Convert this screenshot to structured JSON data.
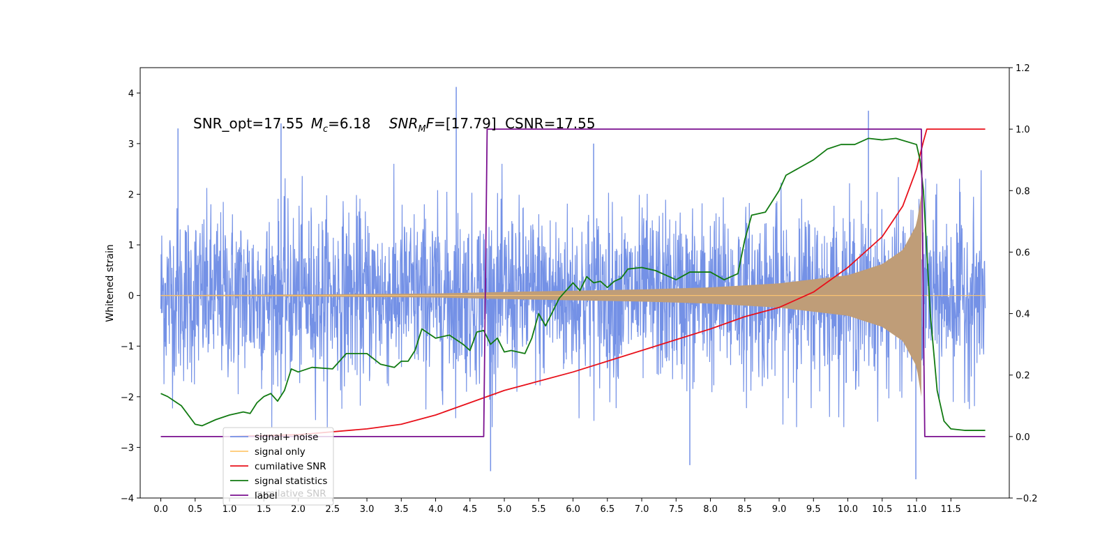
{
  "chart_data": {
    "type": "line",
    "ylabel": "Whitened strain",
    "annotation": {
      "snr_opt": "SNR_opt=17.55",
      "mc_symbol": "M",
      "mc_sub": "c",
      "mc_value": "=6.18",
      "snr_mf_symbol": "SNR",
      "snr_mf_sub": "M",
      "snr_mf_f": "F",
      "snr_mf_value": "=[17.79]",
      "csnr": "CSNR=17.55"
    },
    "x_ticks": [
      "0.0",
      "0.5",
      "1.0",
      "1.5",
      "2.0",
      "2.5",
      "3.0",
      "3.5",
      "4.0",
      "4.5",
      "5.0",
      "5.5",
      "6.0",
      "6.5",
      "7.0",
      "7.5",
      "8.0",
      "8.5",
      "9.0",
      "9.5",
      "10.0",
      "10.5",
      "11.0",
      "11.5"
    ],
    "y_left_ticks": [
      "4",
      "3",
      "2",
      "1",
      "0",
      "−1",
      "−2",
      "−3",
      "−4"
    ],
    "y_right_ticks": [
      "1.2",
      "1.0",
      "0.8",
      "0.6",
      "0.4",
      "0.2",
      "0.0",
      "−0.2"
    ],
    "xlim": [
      -0.3,
      12.35
    ],
    "ylim_left": [
      -4,
      4.5
    ],
    "ylim_right": [
      -0.2,
      1.2
    ],
    "legend": {
      "placement": "lower-left",
      "entries": [
        {
          "label": "signal+ noise",
          "color": "#7491e6"
        },
        {
          "label": "signal only",
          "color": "#ffc870"
        },
        {
          "label": "cumilative SNR",
          "color": "#e8101a"
        },
        {
          "label": "signal statistics",
          "color": "#117a11"
        },
        {
          "label": "label",
          "color": "#7a0f8f"
        }
      ],
      "ghost_text": "cumilative SNR"
    },
    "series": [
      {
        "name": "signal+ noise",
        "axis": "left",
        "color": "#7491e6",
        "x_range": [
          0,
          12
        ],
        "noise_band": [
          -2.2,
          2.4
        ],
        "peaks_up": [
          [
            0.25,
            3.3
          ],
          [
            1.75,
            3.4
          ],
          [
            4.3,
            4.12
          ],
          [
            6.3,
            3.0
          ],
          [
            10.3,
            3.65
          ]
        ],
        "peaks_down": [
          [
            4.8,
            -3.47
          ],
          [
            7.7,
            -3.35
          ],
          [
            10.99,
            -3.63
          ]
        ]
      },
      {
        "name": "signal only",
        "axis": "left",
        "color": "#ffc870",
        "t_merge": 11.07,
        "envelope": [
          [
            0,
            0.01
          ],
          [
            2,
            0.02
          ],
          [
            4,
            0.04
          ],
          [
            5,
            0.07
          ],
          [
            7,
            0.12
          ],
          [
            8,
            0.16
          ],
          [
            9,
            0.24
          ],
          [
            10,
            0.4
          ],
          [
            10.5,
            0.62
          ],
          [
            10.8,
            0.9
          ],
          [
            11.0,
            1.4
          ],
          [
            11.07,
            2.0
          ]
        ]
      },
      {
        "name": "cumilative SNR",
        "axis": "right",
        "color": "#e8101a",
        "points": [
          [
            1.0,
            0.0
          ],
          [
            2.0,
            0.006
          ],
          [
            3.0,
            0.025
          ],
          [
            3.5,
            0.04
          ],
          [
            4.0,
            0.07
          ],
          [
            4.5,
            0.11
          ],
          [
            5.0,
            0.15
          ],
          [
            5.5,
            0.18
          ],
          [
            6.0,
            0.21
          ],
          [
            6.5,
            0.245
          ],
          [
            7.0,
            0.28
          ],
          [
            7.5,
            0.315
          ],
          [
            8.0,
            0.35
          ],
          [
            8.5,
            0.39
          ],
          [
            9.0,
            0.42
          ],
          [
            9.5,
            0.47
          ],
          [
            10.0,
            0.55
          ],
          [
            10.5,
            0.65
          ],
          [
            10.8,
            0.75
          ],
          [
            11.0,
            0.87
          ],
          [
            11.1,
            0.96
          ],
          [
            11.15,
            1.0
          ],
          [
            12.0,
            1.0
          ]
        ]
      },
      {
        "name": "signal statistics",
        "axis": "right",
        "color": "#117a11",
        "points": [
          [
            0.0,
            0.14
          ],
          [
            0.1,
            0.13
          ],
          [
            0.3,
            0.1
          ],
          [
            0.5,
            0.04
          ],
          [
            0.6,
            0.035
          ],
          [
            0.8,
            0.055
          ],
          [
            1.0,
            0.07
          ],
          [
            1.2,
            0.08
          ],
          [
            1.3,
            0.075
          ],
          [
            1.4,
            0.11
          ],
          [
            1.5,
            0.13
          ],
          [
            1.6,
            0.14
          ],
          [
            1.7,
            0.115
          ],
          [
            1.8,
            0.15
          ],
          [
            1.9,
            0.22
          ],
          [
            2.0,
            0.21
          ],
          [
            2.2,
            0.225
          ],
          [
            2.5,
            0.22
          ],
          [
            2.7,
            0.27
          ],
          [
            3.0,
            0.27
          ],
          [
            3.2,
            0.235
          ],
          [
            3.4,
            0.225
          ],
          [
            3.5,
            0.245
          ],
          [
            3.6,
            0.245
          ],
          [
            3.7,
            0.28
          ],
          [
            3.8,
            0.35
          ],
          [
            4.0,
            0.32
          ],
          [
            4.2,
            0.33
          ],
          [
            4.4,
            0.3
          ],
          [
            4.5,
            0.28
          ],
          [
            4.6,
            0.34
          ],
          [
            4.7,
            0.345
          ],
          [
            4.8,
            0.3
          ],
          [
            4.9,
            0.32
          ],
          [
            5.0,
            0.275
          ],
          [
            5.1,
            0.28
          ],
          [
            5.3,
            0.27
          ],
          [
            5.4,
            0.32
          ],
          [
            5.5,
            0.4
          ],
          [
            5.6,
            0.36
          ],
          [
            5.8,
            0.45
          ],
          [
            6.0,
            0.5
          ],
          [
            6.1,
            0.475
          ],
          [
            6.2,
            0.52
          ],
          [
            6.3,
            0.5
          ],
          [
            6.4,
            0.505
          ],
          [
            6.5,
            0.485
          ],
          [
            6.6,
            0.505
          ],
          [
            6.7,
            0.515
          ],
          [
            6.8,
            0.545
          ],
          [
            7.0,
            0.55
          ],
          [
            7.2,
            0.54
          ],
          [
            7.5,
            0.51
          ],
          [
            7.7,
            0.535
          ],
          [
            8.0,
            0.535
          ],
          [
            8.2,
            0.51
          ],
          [
            8.4,
            0.53
          ],
          [
            8.5,
            0.64
          ],
          [
            8.6,
            0.72
          ],
          [
            8.8,
            0.73
          ],
          [
            9.0,
            0.8
          ],
          [
            9.1,
            0.85
          ],
          [
            9.3,
            0.875
          ],
          [
            9.5,
            0.9
          ],
          [
            9.7,
            0.935
          ],
          [
            9.9,
            0.95
          ],
          [
            10.1,
            0.95
          ],
          [
            10.3,
            0.97
          ],
          [
            10.5,
            0.965
          ],
          [
            10.7,
            0.97
          ],
          [
            11.0,
            0.95
          ],
          [
            11.05,
            0.9
          ],
          [
            11.1,
            0.8
          ],
          [
            11.2,
            0.4
          ],
          [
            11.3,
            0.15
          ],
          [
            11.4,
            0.05
          ],
          [
            11.5,
            0.025
          ],
          [
            11.7,
            0.02
          ],
          [
            12.0,
            0.02
          ]
        ]
      },
      {
        "name": "label",
        "axis": "right",
        "color": "#7a0f8f",
        "points": [
          [
            0.0,
            0.0
          ],
          [
            4.7,
            0.0
          ],
          [
            4.75,
            1.0
          ],
          [
            11.07,
            1.0
          ],
          [
            11.12,
            0.0
          ],
          [
            12.0,
            0.0
          ]
        ]
      }
    ]
  }
}
